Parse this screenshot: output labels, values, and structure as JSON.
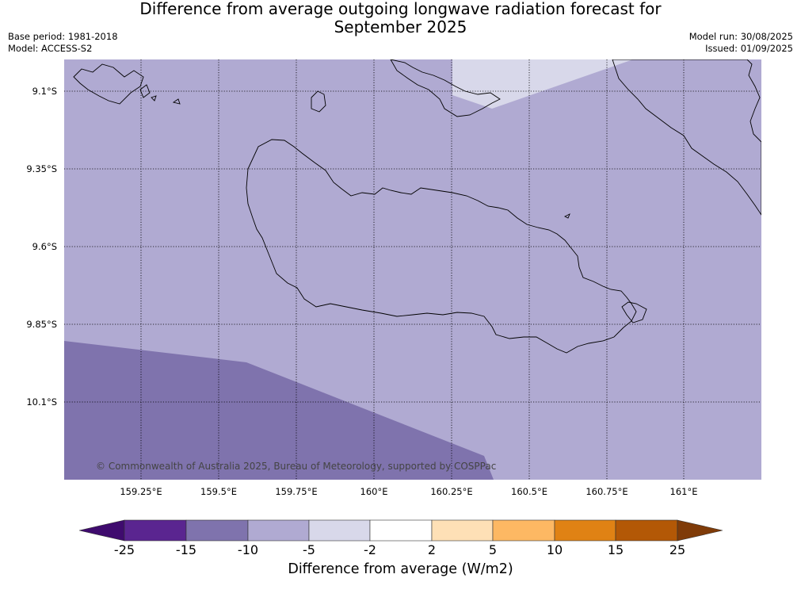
{
  "title": {
    "line1": "Difference from average outgoing longwave radiation forecast for",
    "line2": "September 2025"
  },
  "meta": {
    "base_period": "Base period: 1981-2018",
    "model": "Model: ACCESS-S2",
    "model_run": "Model run: 30/08/2025",
    "issued": "Issued: 01/09/2025"
  },
  "map": {
    "copyright": "© Commonwealth of Australia 2025, Bureau of Meteorology, supported by COSPPac",
    "lat_labels": [
      "9.1°S",
      "9.35°S",
      "9.6°S",
      "9.85°S",
      "10.1°S"
    ],
    "lon_labels": [
      "159.25°E",
      "159.5°E",
      "159.75°E",
      "160°E",
      "160.25°E",
      "160.5°E",
      "160.75°E",
      "161°E"
    ],
    "region_colors": {
      "minus_5_to_minus_2": "#d8d8ea",
      "minus_10_to_minus_5": "#b0aad2",
      "minus_15_to_minus_10": "#7f73ad"
    }
  },
  "colorbar": {
    "label": "Difference from average (W/m2)",
    "ticks": [
      "-25",
      "-15",
      "-10",
      "-5",
      "-2",
      "2",
      "5",
      "10",
      "15",
      "25"
    ],
    "colors": [
      "#3f0b6e",
      "#5a2590",
      "#7f73ad",
      "#b0aad2",
      "#d8d8ea",
      "#ffffff",
      "#fee0b6",
      "#fdb863",
      "#e08214",
      "#b35806",
      "#7f3b08"
    ]
  }
}
